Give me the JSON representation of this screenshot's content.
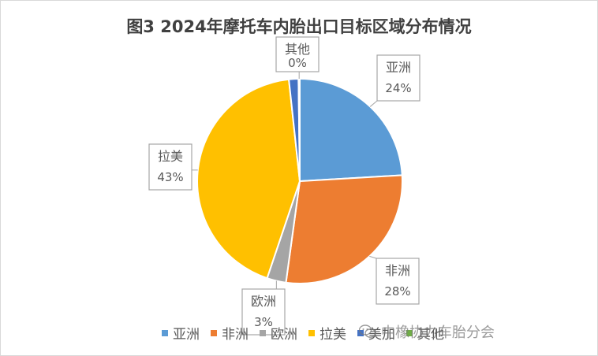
{
  "chart_data": {
    "type": "pie",
    "title": "图3 2024年摩托车内胎出口目标区域分布情况",
    "categories": [
      "亚洲",
      "非洲",
      "欧洲",
      "拉美",
      "美加",
      "其他"
    ],
    "values": [
      24,
      28,
      3,
      43,
      1.5,
      0.2
    ],
    "labels": [
      "24%",
      "28%",
      "3%",
      "43%",
      "",
      "0%"
    ],
    "colors": [
      "#5b9bd5",
      "#ed7d31",
      "#a5a5a5",
      "#ffc000",
      "#4472c4",
      "#70ad47"
    ],
    "legend_position": "bottom"
  },
  "watermark": {
    "text": "中橡协力车胎分会",
    "icon": "wechat-icon"
  }
}
